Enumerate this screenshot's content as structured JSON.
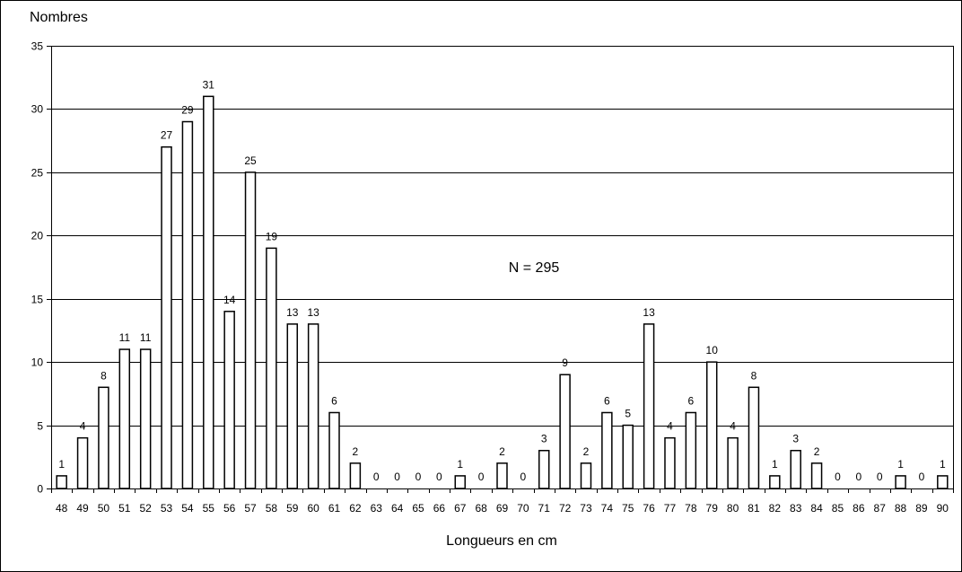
{
  "chart_data": {
    "type": "bar",
    "title": "",
    "ylabel": "Nombres",
    "xlabel": "Longueurs en cm",
    "annotation": "N = 295",
    "ylim": [
      0,
      35
    ],
    "yticks": [
      0,
      5,
      10,
      15,
      20,
      25,
      30,
      35
    ],
    "grid": true,
    "legend": "none",
    "categories": [
      "48",
      "49",
      "50",
      "51",
      "52",
      "53",
      "54",
      "55",
      "56",
      "57",
      "58",
      "59",
      "60",
      "61",
      "62",
      "63",
      "64",
      "65",
      "66",
      "67",
      "68",
      "69",
      "70",
      "71",
      "72",
      "73",
      "74",
      "75",
      "76",
      "77",
      "78",
      "79",
      "80",
      "81",
      "82",
      "83",
      "84",
      "85",
      "86",
      "87",
      "88",
      "89",
      "90"
    ],
    "values": [
      1,
      4,
      8,
      11,
      11,
      27,
      29,
      31,
      14,
      25,
      19,
      13,
      13,
      6,
      2,
      0,
      0,
      0,
      0,
      1,
      0,
      2,
      0,
      3,
      9,
      2,
      6,
      5,
      13,
      4,
      6,
      10,
      4,
      8,
      1,
      3,
      2,
      0,
      0,
      0,
      1,
      0,
      1
    ],
    "colors": {
      "bar_fill": "#ffffff",
      "bar_stroke": "#000000",
      "grid": "#000000"
    }
  }
}
